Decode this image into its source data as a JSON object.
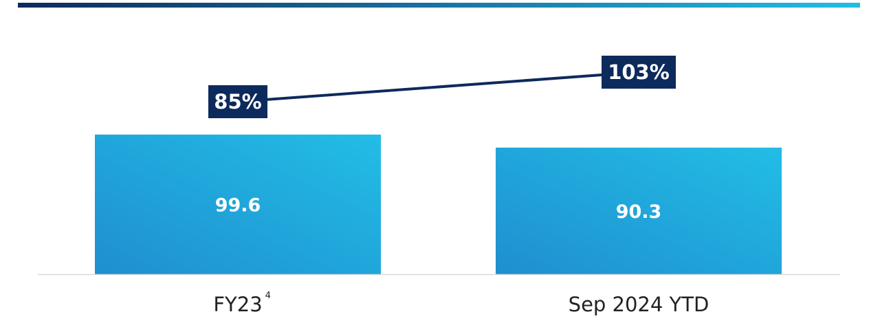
{
  "colors": {
    "bar": "#26a8de",
    "bar_light": "#22bde6",
    "bar_dark": "#1f8fcf",
    "line": "#0d2a5c",
    "label_box": "#0d2a5c",
    "top_band_start": "#0d2a5c",
    "top_band_end": "#22bde6",
    "baseline": "#d9d9d9"
  },
  "chart_data": {
    "type": "bar",
    "categories": [
      "FY23",
      "Sep 2024 YTD"
    ],
    "category_footnotes": [
      "4",
      ""
    ],
    "series": [
      {
        "values": [
          99.6,
          90.3
        ],
        "value_labels": [
          "99.6",
          "90.3"
        ],
        "kind": "bar"
      },
      {
        "values": [
          85,
          103
        ],
        "value_labels": [
          "85%",
          "103%"
        ],
        "kind": "line"
      }
    ],
    "title": "",
    "xlabel": "",
    "ylabel": "",
    "ylim": [
      0,
      100
    ],
    "line_ylim": [
      50,
      110
    ],
    "grid": false,
    "legend": "none"
  }
}
